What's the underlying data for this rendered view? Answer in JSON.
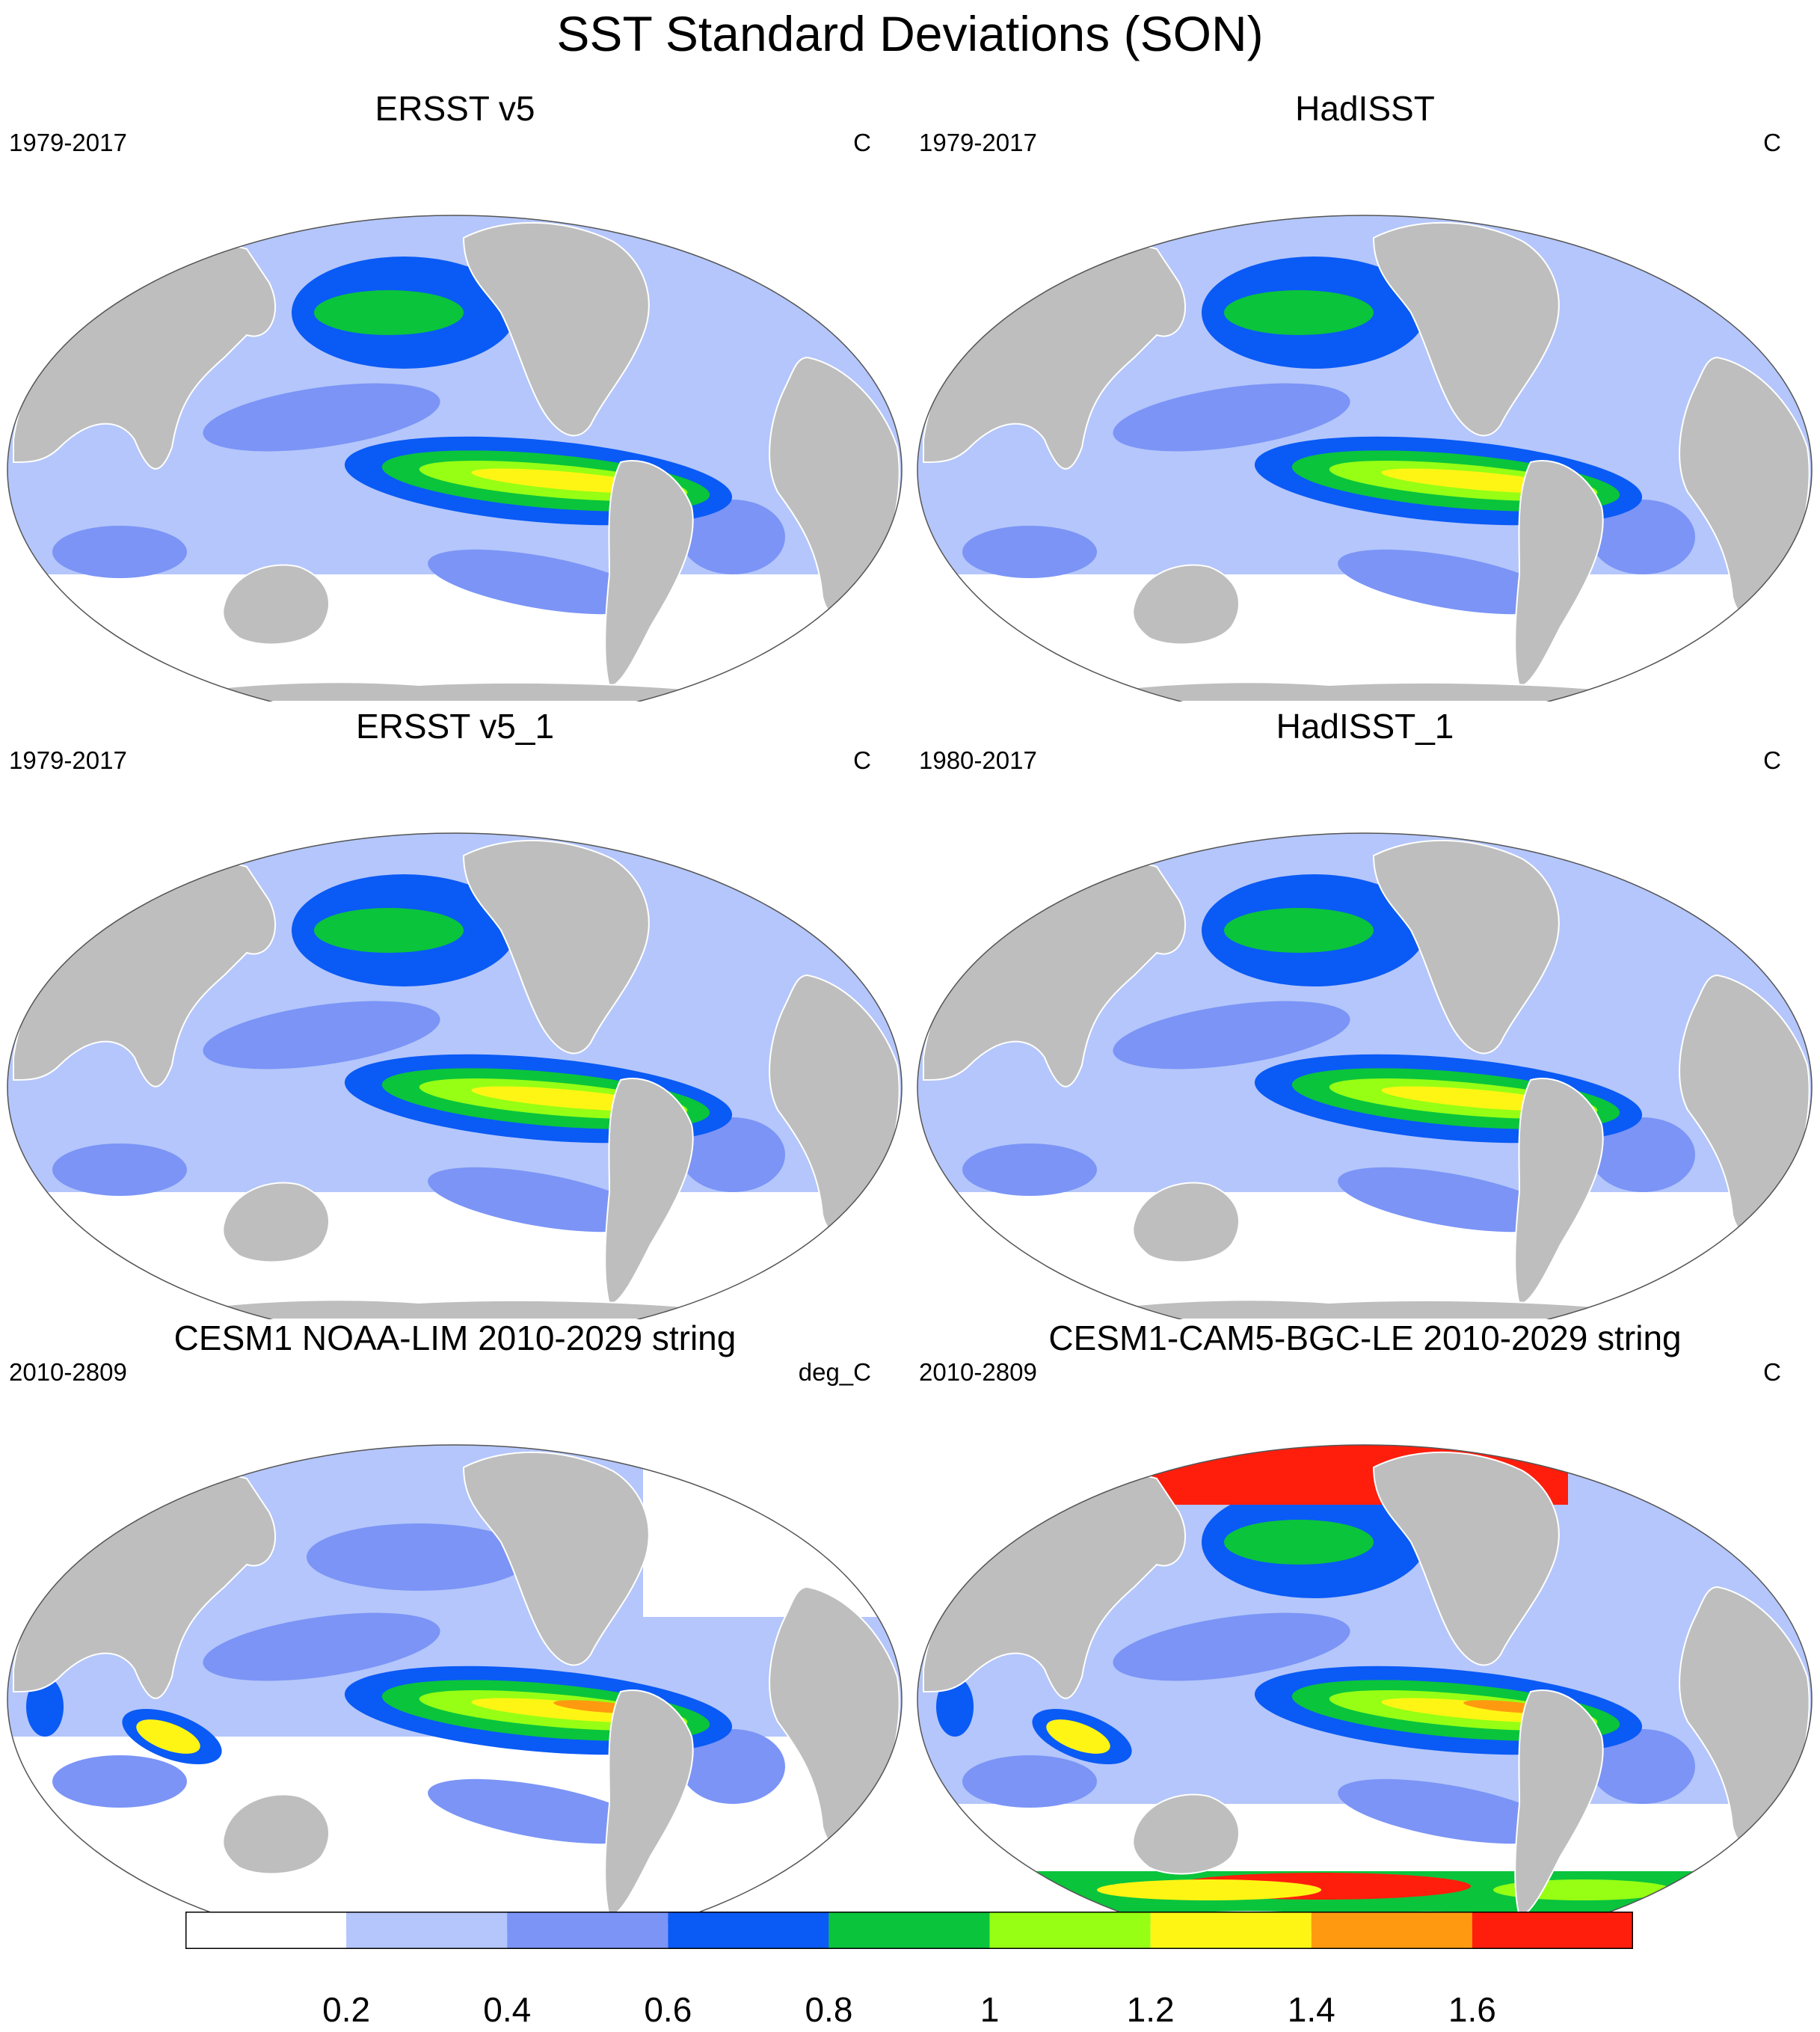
{
  "title": "SST Standard Deviations (SON)",
  "panels": [
    {
      "title": "ERSST v5",
      "period": "1979-2017",
      "units": "C"
    },
    {
      "title": "HadISST",
      "period": "1979-2017",
      "units": "C"
    },
    {
      "title": "ERSST v5_1",
      "period": "1979-2017",
      "units": "C"
    },
    {
      "title": "HadISST_1",
      "period": "1980-2017",
      "units": "C"
    },
    {
      "title": "CESM1 NOAA-LIM 2010-2029 string",
      "period": "2010-2809",
      "units": "deg_C"
    },
    {
      "title": "CESM1-CAM5-BGC-LE 2010-2029 string",
      "period": "2010-2809",
      "units": "C"
    }
  ],
  "colorbar": {
    "labels": [
      "0.2",
      "0.4",
      "0.6",
      "0.8",
      "1",
      "1.2",
      "1.4",
      "1.6"
    ],
    "colors": [
      "#ffffff",
      "#b4c6fb",
      "#7b94f6",
      "#0a5af5",
      "#0ac43c",
      "#96ff14",
      "#fff514",
      "#ff9a10",
      "#ff1e0c"
    ]
  },
  "colors": {
    "land": "#bebebe",
    "coast": "#ffffff"
  }
}
